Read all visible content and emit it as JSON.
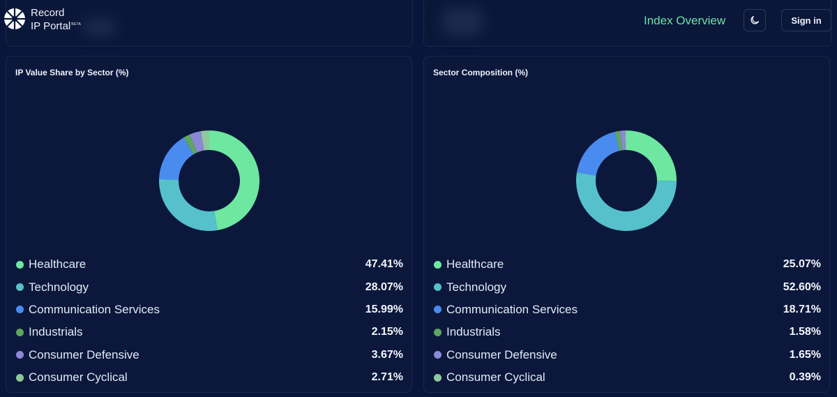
{
  "header": {
    "brand_line1": "Record",
    "brand_line2": "IP Portal",
    "brand_badge": "BETA",
    "nav_link": "Index Overview",
    "theme_icon": "moon-icon",
    "signin_label": "Sign in"
  },
  "colors": {
    "Healthcare": "#6ee7a0",
    "Technology": "#56c1cb",
    "Communication Services": "#4a8bf0",
    "Industrials": "#5fa65f",
    "Consumer Defensive": "#8c88d6",
    "Consumer Cyclical": "#8fc89c"
  },
  "chart_data": [
    {
      "type": "pie",
      "title": "IP Value Share by Sector (%)",
      "donut": true,
      "categories": [
        "Healthcare",
        "Technology",
        "Communication Services",
        "Industrials",
        "Consumer Defensive",
        "Consumer Cyclical"
      ],
      "values": [
        47.41,
        28.07,
        15.99,
        2.15,
        3.67,
        2.71
      ],
      "value_labels": [
        "47.41%",
        "28.07%",
        "15.99%",
        "2.15%",
        "3.67%",
        "2.71%"
      ],
      "legend": "bottom"
    },
    {
      "type": "pie",
      "title": "Sector Composition (%)",
      "donut": true,
      "categories": [
        "Healthcare",
        "Technology",
        "Communication Services",
        "Industrials",
        "Consumer Defensive",
        "Consumer Cyclical"
      ],
      "values": [
        25.07,
        52.6,
        18.71,
        1.58,
        1.65,
        0.39
      ],
      "value_labels": [
        "25.07%",
        "52.60%",
        "18.71%",
        "1.58%",
        "1.65%",
        "0.39%"
      ],
      "legend": "bottom"
    }
  ]
}
